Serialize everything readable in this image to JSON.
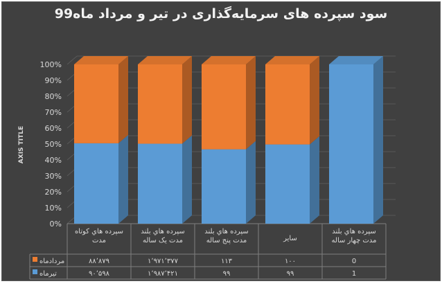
{
  "chart_data": {
    "type": "bar",
    "stacked": "100%",
    "three_d": true,
    "title": "سود سپرده های سرمایه‌گذاری در تیر و مرداد ماه99",
    "ylabel": "AXIS TITLE",
    "ylim": [
      0,
      100
    ],
    "ytick_labels": [
      "0%",
      "10%",
      "20%",
      "30%",
      "40%",
      "50%",
      "60%",
      "70%",
      "80%",
      "90%",
      "100%"
    ],
    "categories": [
      [
        "سپرده هاي كوتاه",
        "مدت"
      ],
      [
        "سپرده هاي بلند",
        "مدت يک ساله"
      ],
      [
        "سپرده هاي بلند",
        "مدت پنج ساله"
      ],
      [
        "ساير"
      ],
      [
        "سپرده هاي بلند",
        "مدت چهار ساله"
      ]
    ],
    "data_table": true,
    "series": [
      {
        "name": "تيرماه",
        "color": "#5b9bd5",
        "values": [
          90598,
          1987421,
          99,
          99,
          1
        ],
        "value_labels": [
          "۹۰٬۵۹۸",
          "۱٬۹۸۷٬۴۲۱",
          "۹۹",
          "۹۹",
          "1"
        ]
      },
      {
        "name": "مردادماه",
        "color": "#ed7d31",
        "values": [
          88879,
          1971377,
          113,
          100,
          0
        ],
        "value_labels": [
          "۸۸٬۸۷۹",
          "۱٬۹۷۱٬۳۷۷",
          "۱۱۳",
          "۱۰۰",
          "0"
        ]
      }
    ],
    "grid": true,
    "legend": "data-table"
  }
}
